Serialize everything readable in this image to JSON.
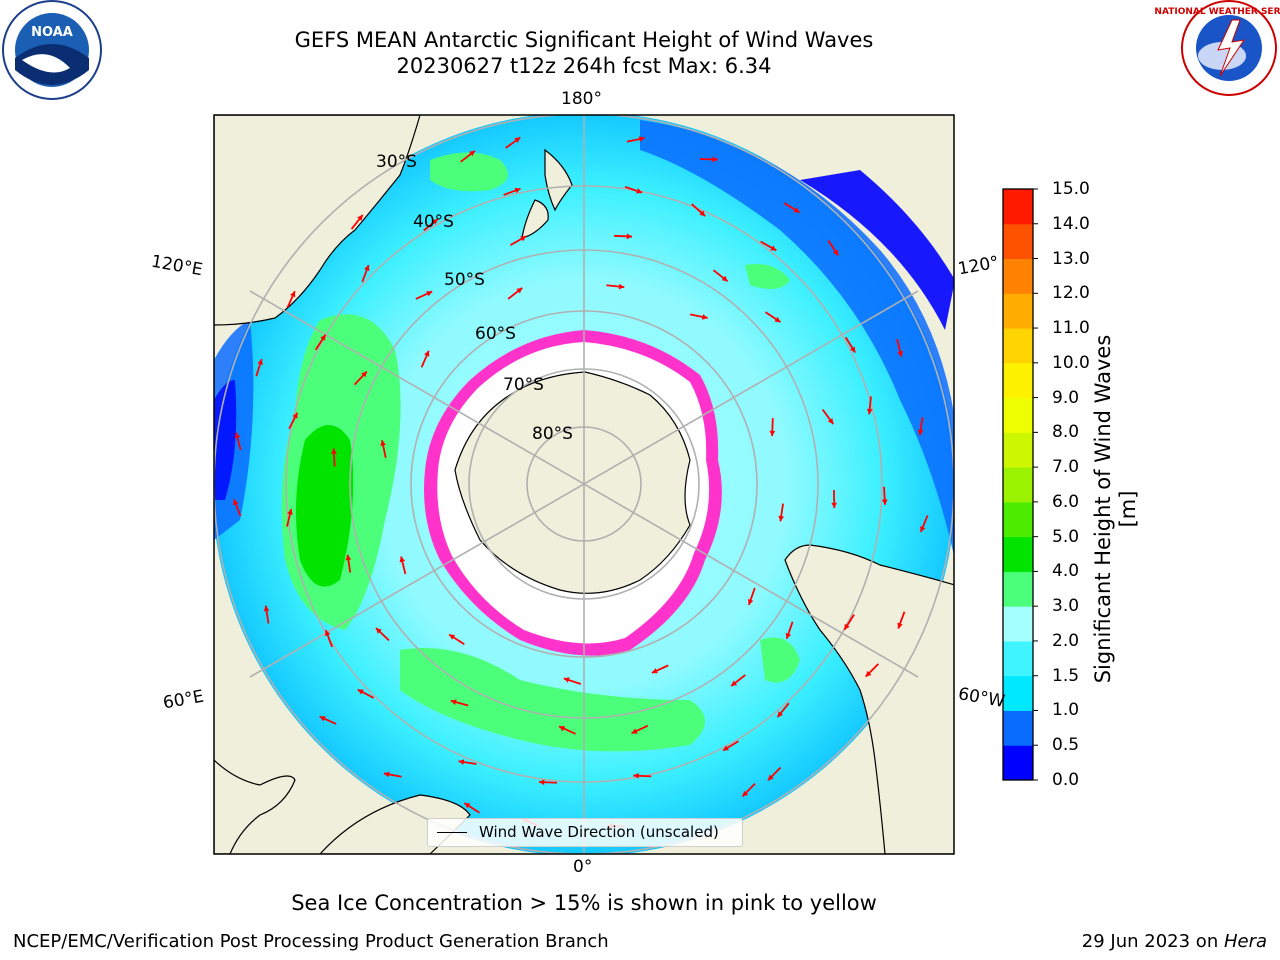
{
  "title": {
    "line1": "GEFS MEAN Antarctic Significant Height of Wind Waves",
    "line2": "20230627 t12z 264h fcst   Max: 6.34"
  },
  "logos": {
    "noaa_text": "NOAA",
    "nws_text": "NATIONAL WEATHER SERVICE"
  },
  "map": {
    "projection": "south-polar-stereographic",
    "center_longitude_top": "180°",
    "longitude_labels": {
      "top": "180°",
      "bottom": "0°",
      "left_upper": "120°E",
      "left_lower": "60°E",
      "right_upper": "120°",
      "right_lower": "60°W"
    },
    "latitude_labels": [
      "30°S",
      "40°S",
      "50°S",
      "60°S",
      "70°S",
      "80°S"
    ],
    "colors": {
      "land": "#efefdb",
      "ice_edge": "#ff33cc",
      "ocean_deep": "#0022ff",
      "arrows": "#ff0000"
    }
  },
  "legend": {
    "label": "Wind Wave Direction (unscaled)"
  },
  "colorbar": {
    "title": "Significant Height of Wind Waves [m]",
    "ticks": [
      "0.0",
      "0.5",
      "1.0",
      "1.5",
      "2.0",
      "3.0",
      "4.0",
      "5.0",
      "6.0",
      "7.0",
      "8.0",
      "9.0",
      "10.0",
      "11.0",
      "12.0",
      "13.0",
      "14.0",
      "15.0"
    ],
    "colors": [
      "#0000ff",
      "#0a6cff",
      "#00e8ff",
      "#40f4ff",
      "#a4ffff",
      "#4cff7a",
      "#00e400",
      "#4ceb00",
      "#9bf200",
      "#cdf700",
      "#eeff00",
      "#fff200",
      "#ffd400",
      "#ffae00",
      "#ff8200",
      "#ff5200",
      "#ff1a00"
    ]
  },
  "note": "Sea Ice Concentration > 15% is shown in pink to yellow",
  "footer": {
    "left": "NCEP/EMC/Verification Post Processing Product Generation Branch",
    "right_prefix": "29 Jun 2023 on ",
    "right_host": "Hera"
  }
}
